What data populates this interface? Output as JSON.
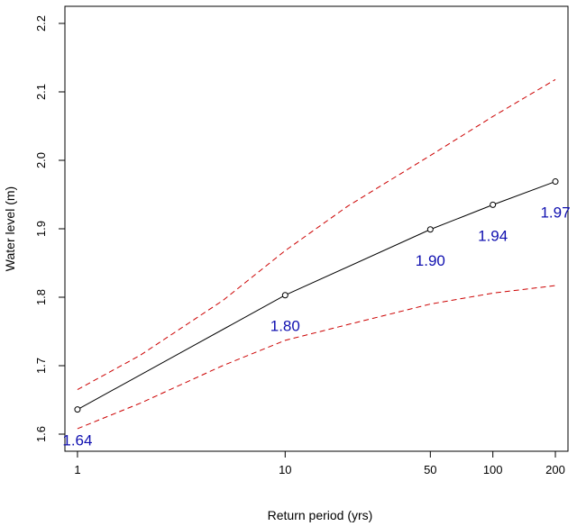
{
  "chart_data": {
    "type": "line",
    "xlabel": "Return period (yrs)",
    "ylabel": "Water level (m)",
    "x_scale": "log",
    "xlim": [
      0.87,
      230
    ],
    "ylim": [
      1.575,
      2.225
    ],
    "x_ticks": [
      1,
      10,
      50,
      100,
      200
    ],
    "x_tick_labels": [
      "1",
      "10",
      "50",
      "100",
      "200"
    ],
    "y_ticks": [
      1.6,
      1.7,
      1.8,
      1.9,
      2.0,
      2.1,
      2.2
    ],
    "y_tick_labels": [
      "1.6",
      "1.7",
      "1.8",
      "1.9",
      "2.0",
      "2.1",
      "2.2"
    ],
    "grid": false,
    "series": [
      {
        "role": "estimate",
        "style": "solid",
        "color": "#000000",
        "markers": "open-circle",
        "x": [
          1,
          10,
          50,
          100,
          200
        ],
        "y": [
          1.636,
          1.803,
          1.899,
          1.935,
          1.969
        ],
        "labels": [
          "1.64",
          "1.80",
          "1.90",
          "1.94",
          "1.97"
        ]
      },
      {
        "role": "upper-bound",
        "style": "dashed",
        "color": "#cc0000",
        "x": [
          1,
          2,
          5,
          10,
          20,
          50,
          100,
          200
        ],
        "y": [
          1.665,
          1.715,
          1.795,
          1.868,
          1.933,
          2.007,
          2.064,
          2.118
        ]
      },
      {
        "role": "lower-bound",
        "style": "dashed",
        "color": "#cc0000",
        "x": [
          1,
          2,
          5,
          10,
          20,
          50,
          100,
          200
        ],
        "y": [
          1.608,
          1.645,
          1.7,
          1.737,
          1.76,
          1.79,
          1.806,
          1.817
        ]
      }
    ],
    "label_color": "#1010b0"
  }
}
